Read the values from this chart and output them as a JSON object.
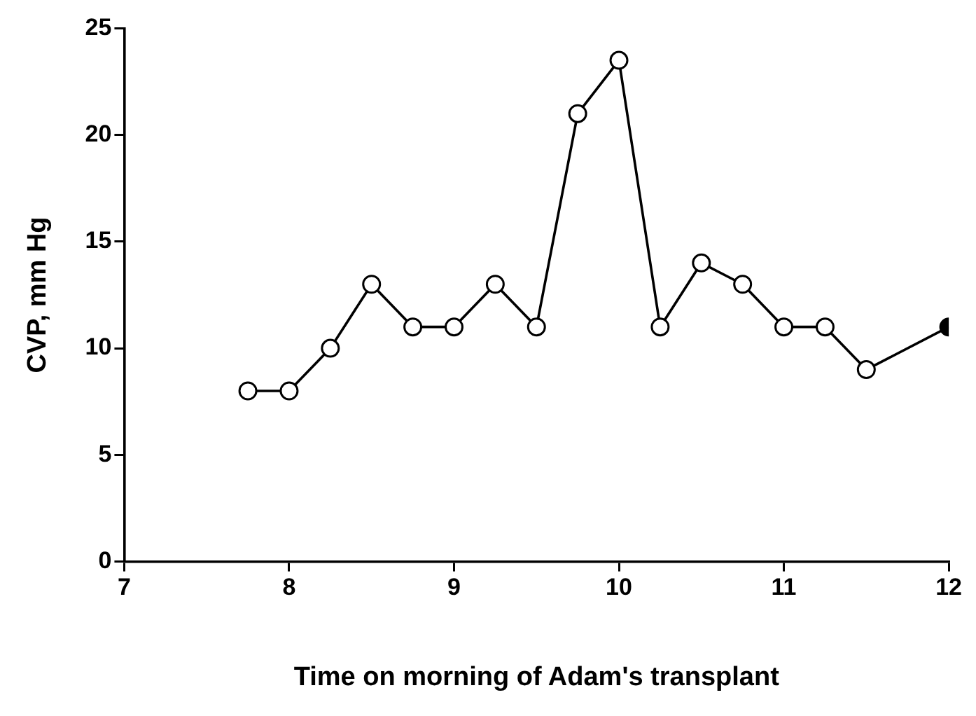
{
  "chart_data": {
    "type": "line",
    "xlabel": "Time on morning of Adam's transplant",
    "ylabel": "CVP, mm Hg",
    "xlim": [
      7,
      12
    ],
    "xticks": [
      7,
      8,
      9,
      10,
      11,
      12
    ],
    "ylim": [
      0,
      25
    ],
    "yticks": [
      0,
      5,
      10,
      15,
      20,
      25
    ],
    "grid": false,
    "legend": false,
    "marker": "circle",
    "line_style": "solid",
    "series": [
      {
        "color": "#000000",
        "x": [
          7.75,
          8,
          8.25,
          8.5,
          8.75,
          9,
          9.25,
          9.5,
          9.75,
          10,
          10.25,
          10.5,
          10.75,
          11,
          11.25,
          11.5,
          12
        ],
        "values": [
          8,
          8,
          10,
          13,
          11,
          11,
          13,
          11,
          21,
          23.5,
          11,
          14,
          13,
          11,
          11,
          9,
          11
        ],
        "colors": [
          "#ffffff",
          "#ffffff",
          "#ffffff",
          "#ffffff",
          "#ffffff",
          "#ffffff",
          "#ffffff",
          "#ffffff",
          "#ffffff",
          "#ffffff",
          "#ffffff",
          "#ffffff",
          "#ffffff",
          "#ffffff",
          "#ffffff",
          "#ffffff",
          "#000000"
        ]
      }
    ]
  }
}
